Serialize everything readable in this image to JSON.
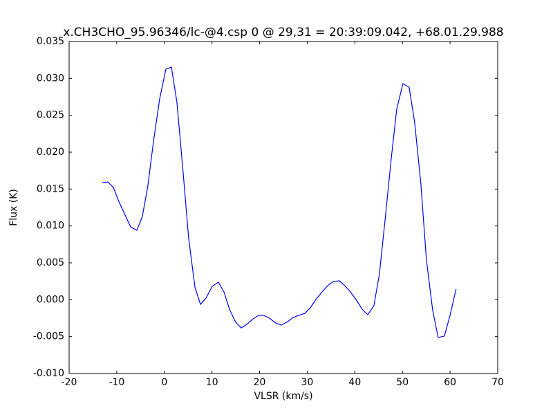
{
  "chart_data": {
    "type": "line",
    "title": "x.CH3CHO_95.96346/lc-@4.csp 0 @ 29,31 = 20:39:09.042, +68.01.29.988",
    "xlabel": "VLSR (km/s)",
    "ylabel": "Flux (K)",
    "x": [
      -13.03,
      -11.87,
      -10.71,
      -9.7,
      -8.24,
      -7.08,
      -5.78,
      -4.62,
      -3.45,
      -2.29,
      -0.99,
      0.32,
      1.48,
      2.64,
      3.95,
      5.11,
      6.42,
      7.58,
      8.74,
      10.04,
      11.35,
      12.51,
      13.67,
      14.98,
      16.14,
      17.3,
      18.61,
      19.77,
      20.93,
      22.09,
      23.4,
      24.56,
      25.87,
      27.03,
      28.19,
      29.49,
      30.65,
      31.82,
      33.12,
      34.28,
      35.44,
      36.75,
      37.91,
      39.07,
      40.23,
      41.54,
      42.7,
      44.0,
      45.16,
      46.32,
      47.63,
      48.79,
      50.09,
      51.4,
      52.56,
      53.86,
      55.02,
      56.33,
      57.49,
      58.8,
      59.96,
      61.26
    ],
    "series": [
      {
        "name": "Flux",
        "color": "#0000ff",
        "values": [
          0.01587,
          0.01597,
          0.01522,
          0.01353,
          0.01147,
          0.00987,
          0.0094,
          0.01128,
          0.0155,
          0.02141,
          0.02722,
          0.03125,
          0.03153,
          0.02674,
          0.01718,
          0.00827,
          0.00171,
          -0.00063,
          0.00022,
          0.00181,
          0.00237,
          0.00106,
          -0.00128,
          -0.00307,
          -0.00382,
          -0.00335,
          -0.0026,
          -0.00213,
          -0.00213,
          -0.00251,
          -0.00316,
          -0.00345,
          -0.00298,
          -0.00242,
          -0.00213,
          -0.00185,
          -0.0011,
          3e-05,
          0.00106,
          0.0019,
          0.00246,
          0.00256,
          0.0019,
          0.00106,
          3e-05,
          -0.00128,
          -0.00203,
          -0.00081,
          0.0035,
          0.01062,
          0.01906,
          0.02581,
          0.02928,
          0.02881,
          0.02403,
          0.01578,
          0.00547,
          -0.00137,
          -0.00512,
          -0.00493,
          -0.00221,
          0.00145
        ]
      }
    ],
    "xlim": [
      -20,
      70
    ],
    "xticks": [
      -20,
      -10,
      0,
      10,
      20,
      30,
      40,
      50,
      60,
      70
    ],
    "ylim": [
      -0.01,
      0.035
    ],
    "yticks": [
      {
        "value": -0.01,
        "label": "-0.010"
      },
      {
        "value": -0.005,
        "label": "-0.005"
      },
      {
        "value": 0,
        "label": "0.000"
      },
      {
        "value": 0.005,
        "label": "0.005"
      },
      {
        "value": 0.01,
        "label": "0.010"
      },
      {
        "value": 0.015,
        "label": "0.015"
      },
      {
        "value": 0.02,
        "label": "0.020"
      },
      {
        "value": 0.025,
        "label": "0.025"
      },
      {
        "value": 0.03,
        "label": "0.030"
      },
      {
        "value": 0.035,
        "label": "0.035"
      }
    ],
    "grid": false
  }
}
